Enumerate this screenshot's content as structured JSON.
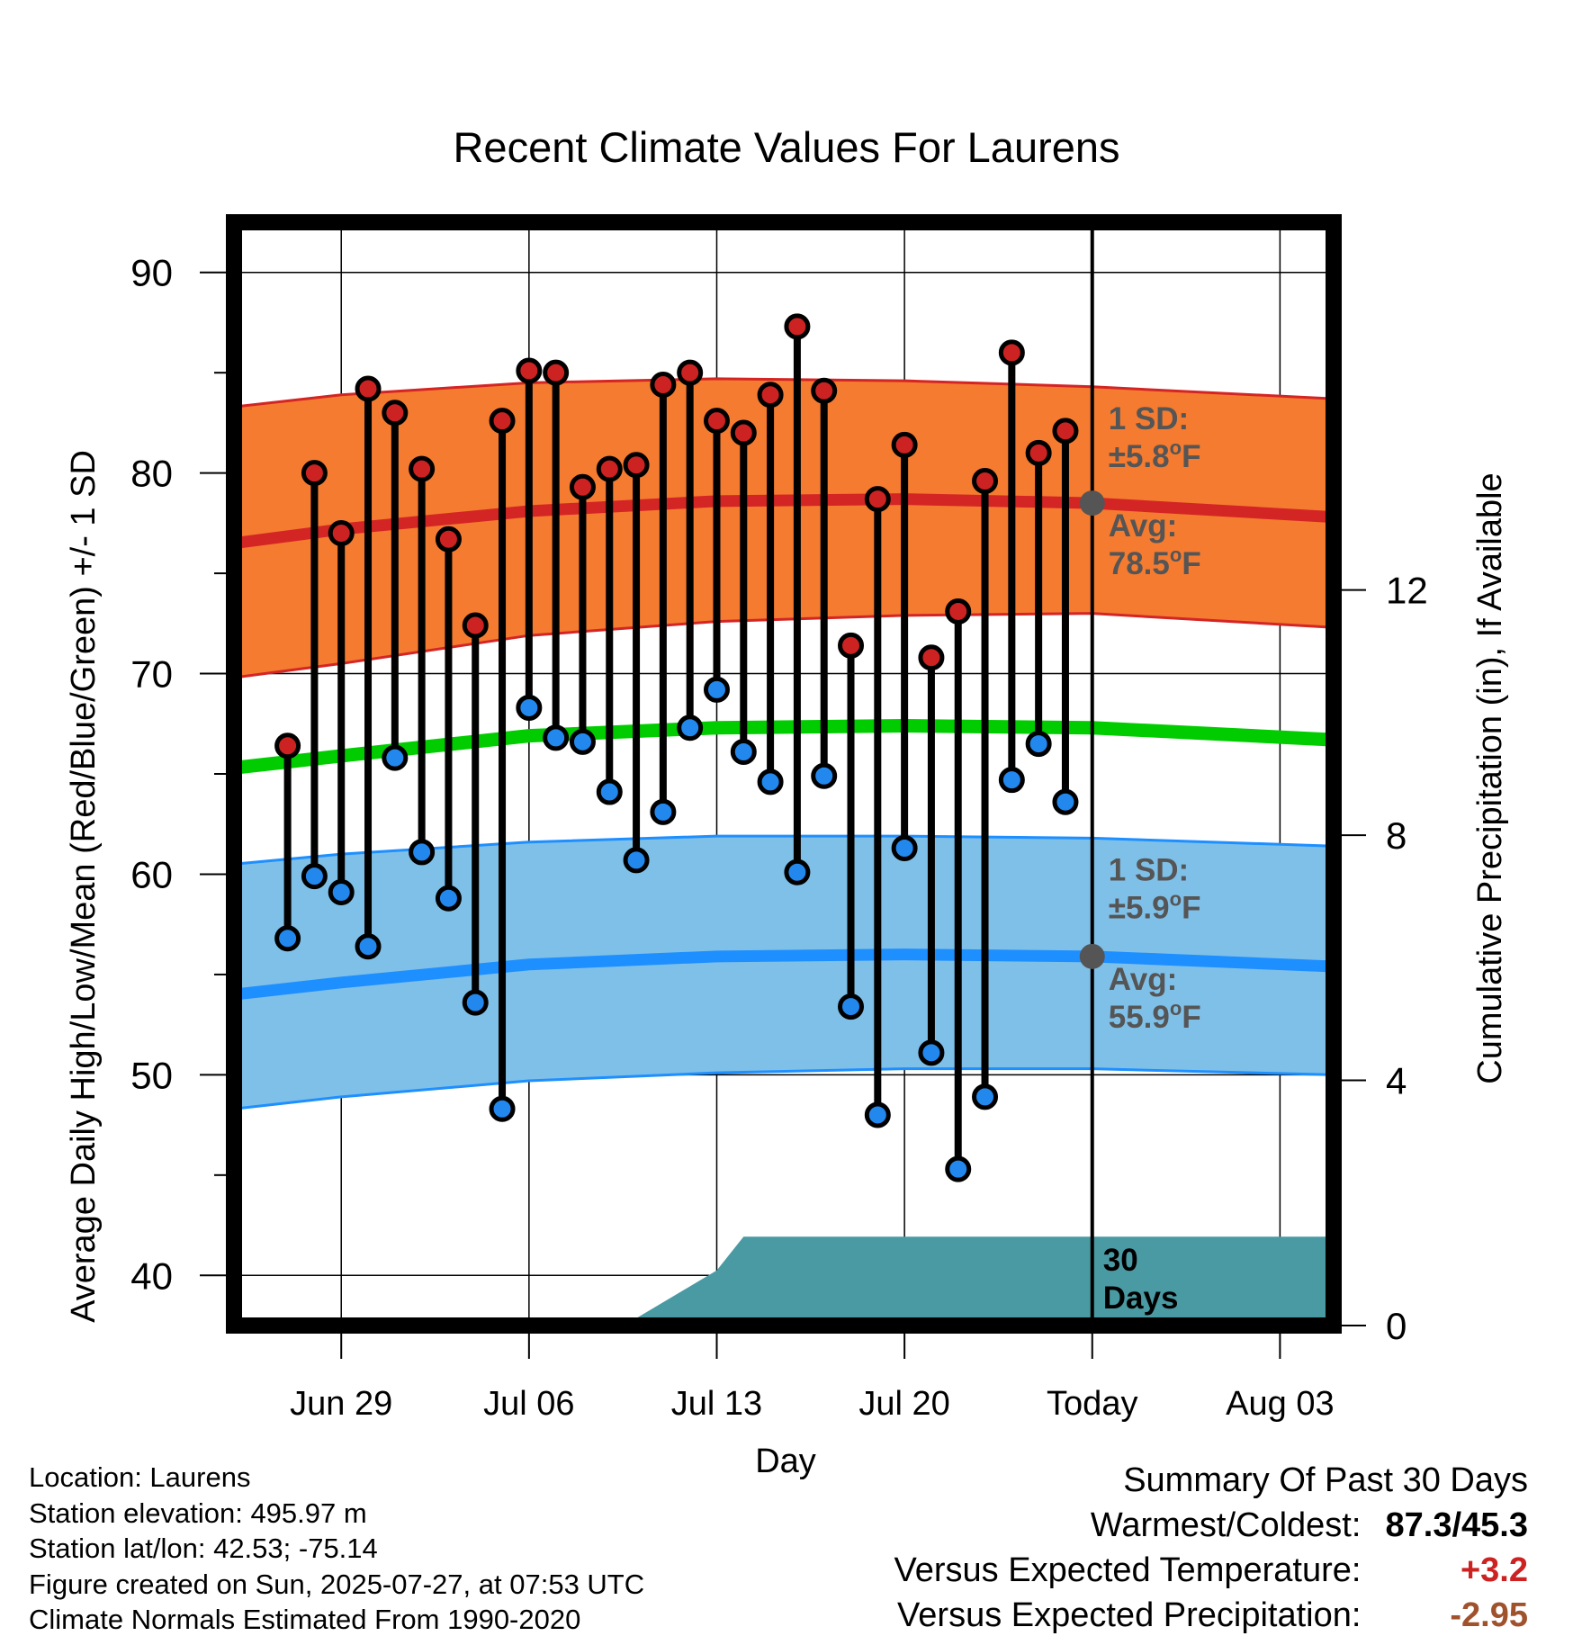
{
  "info": {
    "location": "Location: Laurens",
    "elevation": "Station elevation: 495.97 m",
    "latlon": "Station lat/lon: 42.53; -75.14",
    "created": "Figure created on Sun, 2025-07-27, at 07:53 UTC",
    "normals": "Climate Normals Estimated From 1990-2020"
  },
  "summary": {
    "title": "Summary Of Past 30 Days",
    "warmest_coldest_label": "Warmest/Coldest:",
    "warmest_coldest_value": "87.3/45.3",
    "temp_label": "Versus Expected Temperature:",
    "temp_value": "+3.2",
    "precip_label": "Versus Expected Precipitation:",
    "precip_value": "-2.95",
    "colors": {
      "temp": "#cc2222",
      "precip": "#a0522d"
    }
  },
  "chart_data": {
    "type": "line",
    "title": "Recent Climate Values For Laurens",
    "xlabel": "Day",
    "ylabel": "Average Daily High/Low/Mean (Red/Blue/Green) +/- 1 SD",
    "y2label": "Cumulative Precipitation (in), If Available",
    "ylim": [
      37.5,
      92.5
    ],
    "y2lim": [
      0,
      18
    ],
    "xlim": [
      "2025-06-25",
      "2025-08-05"
    ],
    "y_ticks": [
      40,
      50,
      60,
      70,
      80,
      90
    ],
    "y2_ticks": [
      0,
      4,
      8,
      12
    ],
    "x_ticks": [
      {
        "date": "2025-06-29",
        "label": "Jun 29"
      },
      {
        "date": "2025-07-06",
        "label": "Jul 06"
      },
      {
        "date": "2025-07-13",
        "label": "Jul 13"
      },
      {
        "date": "2025-07-20",
        "label": "Jul 20"
      },
      {
        "date": "2025-07-27",
        "label": "Today"
      },
      {
        "date": "2025-08-03",
        "label": "Aug 03"
      }
    ],
    "today": "2025-07-27",
    "grid": true,
    "normal_curves": {
      "dates": [
        "2025-06-25",
        "2025-06-29",
        "2025-07-06",
        "2025-07-13",
        "2025-07-20",
        "2025-07-27",
        "2025-08-05"
      ],
      "high_avg": [
        76.5,
        77.2,
        78.1,
        78.6,
        78.7,
        78.5,
        77.8
      ],
      "high_upper": [
        83.3,
        83.9,
        84.5,
        84.7,
        84.6,
        84.3,
        83.7
      ],
      "high_lower": [
        69.8,
        70.5,
        71.9,
        72.6,
        72.9,
        73.0,
        72.3
      ],
      "low_avg": [
        54.0,
        54.6,
        55.5,
        55.9,
        56.0,
        55.9,
        55.4
      ],
      "low_upper": [
        60.5,
        61.0,
        61.6,
        61.9,
        61.9,
        61.8,
        61.4
      ],
      "low_lower": [
        48.3,
        48.9,
        49.7,
        50.1,
        50.3,
        50.3,
        50.0
      ],
      "mean": [
        65.3,
        65.9,
        66.9,
        67.3,
        67.4,
        67.3,
        66.7
      ]
    },
    "annotations": [
      {
        "series": "high",
        "sd_label": "1 SD:",
        "sd_value": "±5.8°F",
        "avg_label": "Avg:",
        "avg_value": "78.5°F",
        "avg": 78.5
      },
      {
        "series": "low",
        "sd_label": "1 SD:",
        "sd_value": "±5.9°F",
        "avg_label": "Avg:",
        "avg_value": "55.9°F",
        "avg": 55.9
      }
    ],
    "days_label": [
      "30",
      "Days"
    ],
    "daily": {
      "dates": [
        "2025-06-27",
        "2025-06-28",
        "2025-06-29",
        "2025-06-30",
        "2025-07-01",
        "2025-07-02",
        "2025-07-03",
        "2025-07-04",
        "2025-07-05",
        "2025-07-06",
        "2025-07-07",
        "2025-07-08",
        "2025-07-09",
        "2025-07-10",
        "2025-07-11",
        "2025-07-12",
        "2025-07-13",
        "2025-07-14",
        "2025-07-15",
        "2025-07-16",
        "2025-07-17",
        "2025-07-18",
        "2025-07-19",
        "2025-07-20",
        "2025-07-21",
        "2025-07-22",
        "2025-07-23",
        "2025-07-24",
        "2025-07-25",
        "2025-07-26"
      ],
      "highs": [
        66.4,
        80.0,
        77.0,
        84.2,
        83.0,
        80.2,
        76.7,
        72.4,
        82.6,
        85.1,
        85.0,
        79.3,
        80.2,
        80.4,
        84.4,
        85.0,
        82.6,
        82.0,
        83.9,
        87.3,
        84.1,
        71.4,
        78.7,
        81.4,
        70.8,
        73.1,
        79.6,
        86.0,
        81.0,
        82.1
      ],
      "lows": [
        56.8,
        59.9,
        59.1,
        56.4,
        65.8,
        61.1,
        58.8,
        53.6,
        48.3,
        68.3,
        66.8,
        66.6,
        64.1,
        60.7,
        63.1,
        67.3,
        69.2,
        66.1,
        64.6,
        60.1,
        64.9,
        53.4,
        48.0,
        61.3,
        51.1,
        45.3,
        48.9,
        64.7,
        66.5,
        63.6
      ]
    },
    "precipitation": {
      "dates": [
        "2025-06-25",
        "2025-06-27",
        "2025-06-30",
        "2025-07-04",
        "2025-07-08",
        "2025-07-10",
        "2025-07-13",
        "2025-07-14",
        "2025-08-05"
      ],
      "values": [
        0.0,
        0.0,
        0.05,
        0.05,
        0.1,
        0.12,
        0.9,
        1.45,
        1.45
      ]
    },
    "colors": {
      "high_band": "#f47b30",
      "high_line": "#d42525",
      "low_band": "#7fc0e8",
      "low_line": "#1e8fff",
      "mean_line": "#00cc00",
      "precip": "#4a9aa3",
      "high_dot": "#cc2222",
      "low_dot": "#2288ee",
      "annotation": "#555555"
    }
  }
}
